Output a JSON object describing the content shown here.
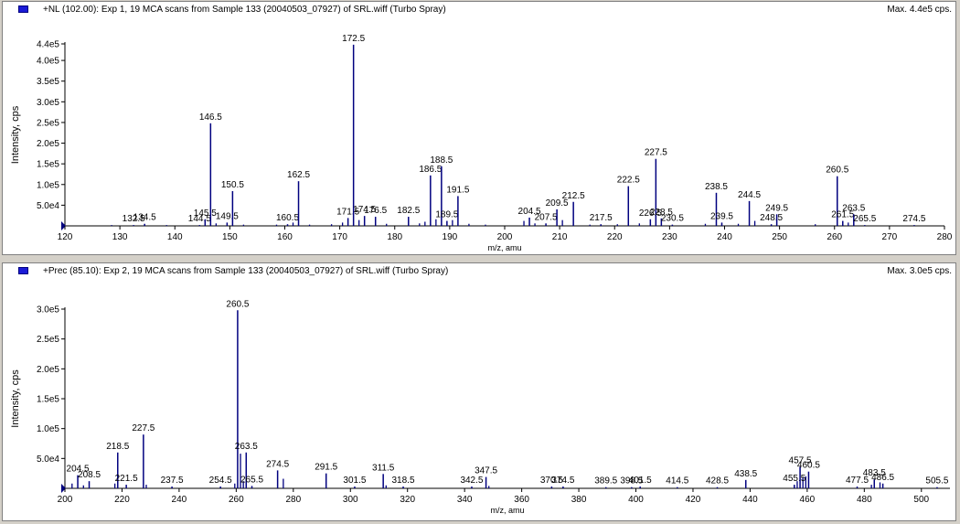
{
  "colors": {
    "peak": "#00007f",
    "axis": "#000000",
    "marker": "#1a1ad6",
    "background": "#ffffff",
    "frame": "#d4d0c8"
  },
  "panels": [
    {
      "title": "+NL (102.00): Exp 1, 19 MCA scans from Sample 133 (20040503_07927) of SRL.wiff (Turbo Spray)",
      "max_label": "Max. 4.4e5 cps."
    },
    {
      "title": "+Prec (85.10): Exp 2, 19 MCA scans from Sample 133 (20040503_07927) of SRL.wiff (Turbo Spray)",
      "max_label": "Max. 3.0e5 cps."
    }
  ],
  "chart_data": [
    {
      "type": "bar",
      "xlabel": "m/z, amu",
      "ylabel": "Intensity, cps",
      "xlim": [
        120,
        280
      ],
      "ylim": [
        0,
        440000
      ],
      "xticks": [
        120,
        130,
        140,
        150,
        160,
        170,
        180,
        190,
        200,
        210,
        220,
        230,
        240,
        250,
        260,
        270,
        280
      ],
      "yticks": [
        {
          "v": 50000,
          "label": "5.0e4"
        },
        {
          "v": 100000,
          "label": "1.0e5"
        },
        {
          "v": 150000,
          "label": "1.5e5"
        },
        {
          "v": 200000,
          "label": "2.0e5"
        },
        {
          "v": 250000,
          "label": "2.5e5"
        },
        {
          "v": 300000,
          "label": "3.0e5"
        },
        {
          "v": 350000,
          "label": "3.5e5"
        },
        {
          "v": 400000,
          "label": "4.0e5"
        },
        {
          "v": 440000,
          "label": "4.4e5"
        }
      ],
      "peaks": [
        {
          "x": 132.5,
          "y": 2000,
          "label": "132.5"
        },
        {
          "x": 134.5,
          "y": 5000,
          "label": "134.5"
        },
        {
          "x": 144.5,
          "y": 2000,
          "label": "144.5"
        },
        {
          "x": 145.5,
          "y": 16000,
          "label": "145.5"
        },
        {
          "x": 146.5,
          "y": 248000,
          "label": "146.5"
        },
        {
          "x": 149.5,
          "y": 8000,
          "label": "149.5"
        },
        {
          "x": 150.5,
          "y": 84000,
          "label": "150.5"
        },
        {
          "x": 160.5,
          "y": 4000,
          "label": "160.5"
        },
        {
          "x": 162.5,
          "y": 108000,
          "label": "162.5"
        },
        {
          "x": 171.5,
          "y": 19000,
          "label": "171.5"
        },
        {
          "x": 172.5,
          "y": 438000,
          "label": "172.5"
        },
        {
          "x": 174.5,
          "y": 24000,
          "label": "174.5"
        },
        {
          "x": 176.5,
          "y": 22000,
          "label": "176.5"
        },
        {
          "x": 182.5,
          "y": 22000,
          "label": "182.5"
        },
        {
          "x": 186.5,
          "y": 122000,
          "label": "186.5"
        },
        {
          "x": 188.5,
          "y": 144000,
          "label": "188.5"
        },
        {
          "x": 189.5,
          "y": 12000,
          "label": "189.5"
        },
        {
          "x": 191.5,
          "y": 72000,
          "label": "191.5"
        },
        {
          "x": 204.5,
          "y": 20000,
          "label": "204.5"
        },
        {
          "x": 207.5,
          "y": 6000,
          "label": "207.5"
        },
        {
          "x": 209.5,
          "y": 40000,
          "label": "209.5"
        },
        {
          "x": 212.5,
          "y": 58000,
          "label": "212.5"
        },
        {
          "x": 217.5,
          "y": 4000,
          "label": "217.5"
        },
        {
          "x": 222.5,
          "y": 96000,
          "label": "222.5"
        },
        {
          "x": 226.5,
          "y": 16000,
          "label": "226.5"
        },
        {
          "x": 227.5,
          "y": 162000,
          "label": "227.5"
        },
        {
          "x": 228.5,
          "y": 18000,
          "label": "228.5"
        },
        {
          "x": 230.5,
          "y": 3000,
          "label": "230.5"
        },
        {
          "x": 238.5,
          "y": 80000,
          "label": "238.5"
        },
        {
          "x": 239.5,
          "y": 8000,
          "label": "239.5"
        },
        {
          "x": 244.5,
          "y": 60000,
          "label": "244.5"
        },
        {
          "x": 248.5,
          "y": 4000,
          "label": "248.5"
        },
        {
          "x": 249.5,
          "y": 28000,
          "label": "249.5"
        },
        {
          "x": 260.5,
          "y": 120000,
          "label": "260.5"
        },
        {
          "x": 261.5,
          "y": 12000,
          "label": "261.5"
        },
        {
          "x": 263.5,
          "y": 28000,
          "label": "263.5"
        },
        {
          "x": 265.5,
          "y": 2000,
          "label": "265.5"
        },
        {
          "x": 274.5,
          "y": 2000,
          "label": "274.5"
        }
      ],
      "minor_peaks": [
        {
          "x": 128.5,
          "y": 2000
        },
        {
          "x": 138.5,
          "y": 2000
        },
        {
          "x": 147.5,
          "y": 6000
        },
        {
          "x": 152.5,
          "y": 3000
        },
        {
          "x": 158.5,
          "y": 3000
        },
        {
          "x": 161.5,
          "y": 8000
        },
        {
          "x": 164.5,
          "y": 3000
        },
        {
          "x": 168.5,
          "y": 4000
        },
        {
          "x": 170.5,
          "y": 8000
        },
        {
          "x": 173.5,
          "y": 14000
        },
        {
          "x": 178.5,
          "y": 5000
        },
        {
          "x": 184.5,
          "y": 6000
        },
        {
          "x": 185.5,
          "y": 10000
        },
        {
          "x": 187.5,
          "y": 16000
        },
        {
          "x": 190.5,
          "y": 14000
        },
        {
          "x": 193.5,
          "y": 5000
        },
        {
          "x": 196.5,
          "y": 3000
        },
        {
          "x": 203.5,
          "y": 12000
        },
        {
          "x": 205.5,
          "y": 6000
        },
        {
          "x": 210.5,
          "y": 14000
        },
        {
          "x": 215.5,
          "y": 3000
        },
        {
          "x": 220.5,
          "y": 4000
        },
        {
          "x": 224.5,
          "y": 6000
        },
        {
          "x": 236.5,
          "y": 5000
        },
        {
          "x": 242.5,
          "y": 5000
        },
        {
          "x": 245.5,
          "y": 12000
        },
        {
          "x": 256.5,
          "y": 4000
        },
        {
          "x": 262.5,
          "y": 8000
        }
      ]
    },
    {
      "type": "bar",
      "xlabel": "m/z, amu",
      "ylabel": "Intensity, cps",
      "xlim": [
        200,
        510
      ],
      "ylim": [
        0,
        300000
      ],
      "xticks": [
        200,
        220,
        240,
        260,
        280,
        300,
        320,
        340,
        360,
        380,
        400,
        420,
        440,
        460,
        480,
        500
      ],
      "yticks": [
        {
          "v": 50000,
          "label": "5.0e4"
        },
        {
          "v": 100000,
          "label": "1.0e5"
        },
        {
          "v": 150000,
          "label": "1.5e5"
        },
        {
          "v": 200000,
          "label": "2.0e5"
        },
        {
          "v": 250000,
          "label": "2.5e5"
        },
        {
          "v": 300000,
          "label": "3.0e5"
        }
      ],
      "peaks": [
        {
          "x": 204.5,
          "y": 22000,
          "label": "204.5"
        },
        {
          "x": 208.5,
          "y": 12000,
          "label": "208.5"
        },
        {
          "x": 218.5,
          "y": 60000,
          "label": "218.5"
        },
        {
          "x": 221.5,
          "y": 6000,
          "label": "221.5"
        },
        {
          "x": 227.5,
          "y": 90000,
          "label": "227.5"
        },
        {
          "x": 237.5,
          "y": 3000,
          "label": "237.5"
        },
        {
          "x": 254.5,
          "y": 3000,
          "label": "254.5"
        },
        {
          "x": 260.5,
          "y": 298000,
          "label": "260.5"
        },
        {
          "x": 263.5,
          "y": 60000,
          "label": "263.5"
        },
        {
          "x": 265.5,
          "y": 4000,
          "label": "265.5"
        },
        {
          "x": 274.5,
          "y": 30000,
          "label": "274.5"
        },
        {
          "x": 291.5,
          "y": 25000,
          "label": "291.5"
        },
        {
          "x": 301.5,
          "y": 3000,
          "label": "301.5"
        },
        {
          "x": 311.5,
          "y": 24000,
          "label": "311.5"
        },
        {
          "x": 318.5,
          "y": 3000,
          "label": "318.5"
        },
        {
          "x": 342.5,
          "y": 3000,
          "label": "342.5"
        },
        {
          "x": 347.5,
          "y": 19000,
          "label": "347.5"
        },
        {
          "x": 370.5,
          "y": 3000,
          "label": "370.5"
        },
        {
          "x": 374.5,
          "y": 3000,
          "label": "374.5"
        },
        {
          "x": 389.5,
          "y": 2000,
          "label": "389.5"
        },
        {
          "x": 398.5,
          "y": 2000,
          "label": "398.5"
        },
        {
          "x": 401.5,
          "y": 3000,
          "label": "401.5"
        },
        {
          "x": 414.5,
          "y": 2000,
          "label": "414.5"
        },
        {
          "x": 428.5,
          "y": 2000,
          "label": "428.5"
        },
        {
          "x": 438.5,
          "y": 14000,
          "label": "438.5"
        },
        {
          "x": 455.5,
          "y": 6000,
          "label": "455.5"
        },
        {
          "x": 457.5,
          "y": 36000,
          "label": "457.5"
        },
        {
          "x": 460.5,
          "y": 28000,
          "label": "460.5"
        },
        {
          "x": 477.5,
          "y": 3000,
          "label": "477.5"
        },
        {
          "x": 483.5,
          "y": 15000,
          "label": "483.5"
        },
        {
          "x": 486.5,
          "y": 8000,
          "label": "486.5"
        },
        {
          "x": 505.5,
          "y": 2000,
          "label": "505.5"
        }
      ],
      "minor_peaks": [
        {
          "x": 202.5,
          "y": 8000
        },
        {
          "x": 206.5,
          "y": 5000
        },
        {
          "x": 217.5,
          "y": 8000
        },
        {
          "x": 228.5,
          "y": 6000
        },
        {
          "x": 259.5,
          "y": 8000
        },
        {
          "x": 261.5,
          "y": 58000
        },
        {
          "x": 262.5,
          "y": 12000
        },
        {
          "x": 276.5,
          "y": 16000
        },
        {
          "x": 312.5,
          "y": 5000
        },
        {
          "x": 348.5,
          "y": 4000
        },
        {
          "x": 456.5,
          "y": 12000
        },
        {
          "x": 458.5,
          "y": 18000
        },
        {
          "x": 459.5,
          "y": 20000
        },
        {
          "x": 482.5,
          "y": 6000
        },
        {
          "x": 485.5,
          "y": 10000
        }
      ]
    }
  ]
}
